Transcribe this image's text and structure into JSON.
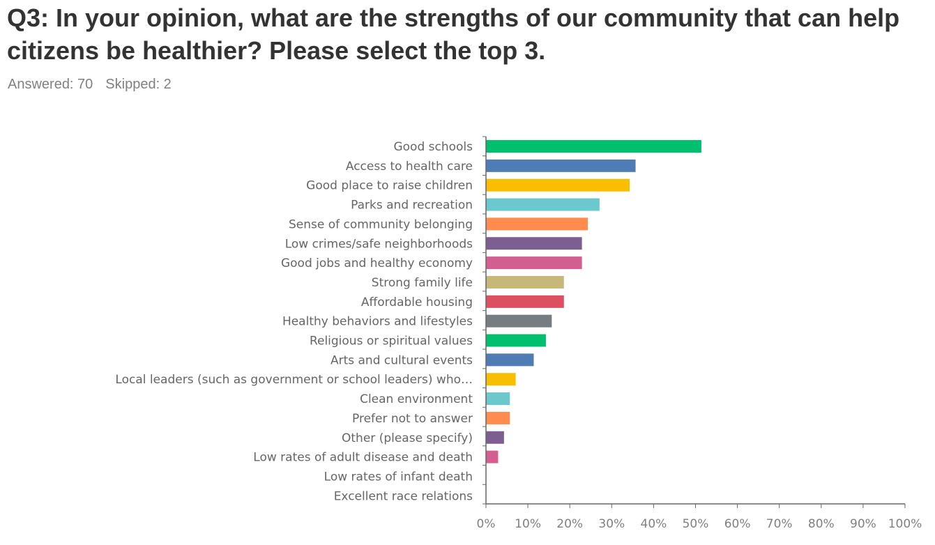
{
  "header": {
    "question": "Q3: In your opinion, what are the strengths of our community that can help citizens be healthier? Please select the top 3.",
    "answered": "Answered: 70",
    "skipped": "Skipped: 2"
  },
  "chart_data": {
    "type": "bar",
    "orientation": "horizontal",
    "title": "",
    "xlabel": "",
    "ylabel": "",
    "xlim": [
      0,
      100
    ],
    "x_ticks": [
      "0%",
      "10%",
      "20%",
      "30%",
      "40%",
      "50%",
      "60%",
      "70%",
      "80%",
      "90%",
      "100%"
    ],
    "grid": false,
    "categories": [
      "Good schools",
      "Access to health care",
      "Good place to raise children",
      "Parks and recreation",
      "Sense of community belonging",
      "Low crimes/safe neighborhoods",
      "Good jobs and healthy economy",
      "Strong family life",
      "Affordable housing",
      "Healthy behaviors and lifestyles",
      "Religious or spiritual values",
      "Arts and cultural events",
      "Local leaders (such as government or school leaders) who…",
      "Clean environment",
      "Prefer not to answer",
      "Other (please specify)",
      "Low rates of adult disease and death",
      "Low rates of infant death",
      "Excellent race relations"
    ],
    "values": [
      51.4,
      35.7,
      34.3,
      27.1,
      24.3,
      22.9,
      22.9,
      18.6,
      18.6,
      15.7,
      14.3,
      11.4,
      7.1,
      5.7,
      5.7,
      4.3,
      2.9,
      0,
      0
    ],
    "colors": [
      "#00BF6F",
      "#507CB6",
      "#F9BE00",
      "#6BC8CD",
      "#FF8B4F",
      "#7D5E90",
      "#D25F90",
      "#C7B879",
      "#DC5061",
      "#757D82",
      "#00BF6F",
      "#507CB6",
      "#F9BE00",
      "#6BC8CD",
      "#FF8B4F",
      "#7D5E90",
      "#D25F90",
      "#C7B879",
      "#DC5061"
    ],
    "axis_color": "#666666"
  }
}
